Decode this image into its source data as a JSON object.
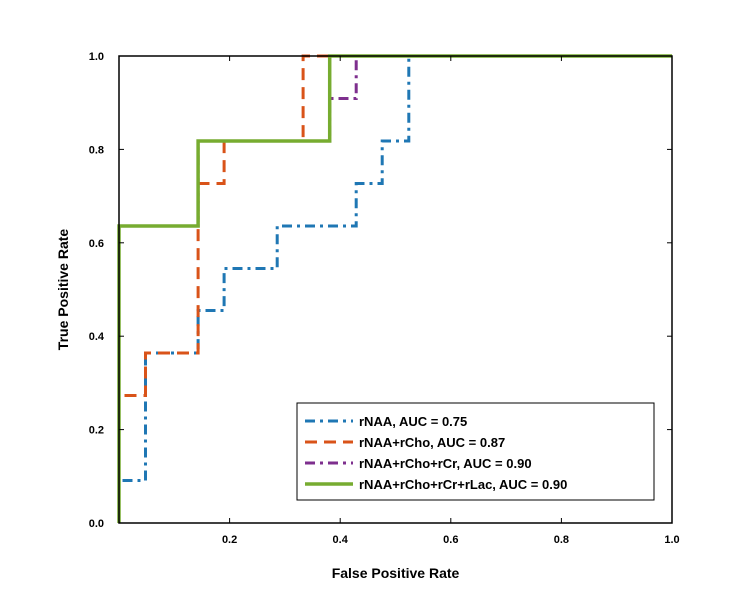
{
  "chart_data": {
    "type": "line",
    "title": "",
    "xlabel": "False Positive Rate",
    "ylabel": "True Positive Rate",
    "xlim": [
      0,
      1
    ],
    "ylim": [
      0,
      1
    ],
    "x_ticks": [
      "0.2",
      "0.4",
      "0.6",
      "0.8",
      "1.0"
    ],
    "x_tick_values": [
      0.2,
      0.4,
      0.6,
      0.8,
      1.0
    ],
    "y_ticks": [
      "0.0",
      "0.2",
      "0.4",
      "0.6",
      "0.8",
      "1.0"
    ],
    "y_tick_values": [
      0.0,
      0.2,
      0.4,
      0.6,
      0.8,
      1.0
    ],
    "grid": false,
    "legend_position": "bottom-right",
    "series": [
      {
        "name": "rNAA, AUC = 0.75",
        "color": "#1f77b4",
        "style": "dashdot",
        "x": [
          0,
          0,
          0.048,
          0.048,
          0.143,
          0.143,
          0.19,
          0.19,
          0.286,
          0.286,
          0.429,
          0.429,
          0.476,
          0.476,
          0.524,
          0.524,
          1.0
        ],
        "y": [
          0,
          0.091,
          0.091,
          0.364,
          0.364,
          0.455,
          0.455,
          0.545,
          0.545,
          0.636,
          0.636,
          0.727,
          0.727,
          0.818,
          0.818,
          1.0,
          1.0
        ]
      },
      {
        "name": "rNAA+rCho, AUC = 0.87",
        "color": "#d95319",
        "style": "dashed",
        "x": [
          0,
          0,
          0.048,
          0.048,
          0.143,
          0.143,
          0.19,
          0.19,
          0.333,
          0.333,
          1.0
        ],
        "y": [
          0,
          0.273,
          0.273,
          0.364,
          0.364,
          0.727,
          0.727,
          0.818,
          0.818,
          1.0,
          1.0
        ]
      },
      {
        "name": "rNAA+rCho+rCr, AUC = 0.90",
        "color": "#7e2f8e",
        "style": "dashdot",
        "x": [
          0,
          0,
          0.143,
          0.143,
          0.381,
          0.381,
          0.429,
          0.429,
          1.0
        ],
        "y": [
          0,
          0.636,
          0.636,
          0.818,
          0.818,
          0.909,
          0.909,
          1.0,
          1.0
        ]
      },
      {
        "name": "rNAA+rCho+rCr+rLac, AUC = 0.90",
        "color": "#77ac30",
        "style": "solid",
        "x": [
          0,
          0,
          0.143,
          0.143,
          0.381,
          0.381,
          1.0
        ],
        "y": [
          0,
          0.636,
          0.636,
          0.818,
          0.818,
          1.0,
          1.0
        ]
      }
    ]
  }
}
